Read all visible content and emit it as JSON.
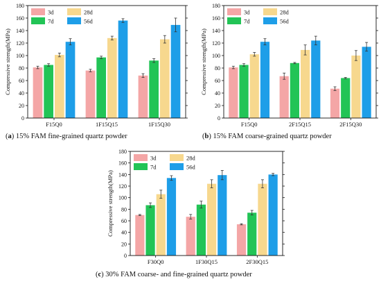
{
  "colors": {
    "3d": "#f4a6a6",
    "7d": "#22c456",
    "28d": "#f7d88e",
    "56d": "#1e9ee8",
    "axis": "#111111",
    "error": "#333333"
  },
  "chart_data": [
    {
      "type": "bar",
      "panel_tag": "a",
      "caption": "15% FAM fine-grained quartz powder",
      "ylabel": "Compressive strength(MPa)",
      "xlabel": "",
      "ylim": [
        0,
        180
      ],
      "yticks": [
        0,
        20,
        40,
        60,
        80,
        100,
        120,
        140,
        160,
        180
      ],
      "categories": [
        "F15Q0",
        "1F15Q15",
        "1F15Q30"
      ],
      "legend_position": "top-left",
      "series": [
        {
          "name": "3d",
          "values": [
            81,
            76,
            68
          ],
          "errors": [
            2,
            2,
            3
          ]
        },
        {
          "name": "7d",
          "values": [
            85,
            97,
            92
          ],
          "errors": [
            2,
            2,
            3
          ]
        },
        {
          "name": "28d",
          "values": [
            101,
            128,
            126
          ],
          "errors": [
            3,
            3,
            6
          ]
        },
        {
          "name": "56d",
          "values": [
            122,
            156,
            149
          ],
          "errors": [
            5,
            3,
            11
          ]
        }
      ]
    },
    {
      "type": "bar",
      "panel_tag": "b",
      "caption": "15% FAM coarse-grained quartz powder",
      "ylabel": "Compressive strength(MPa)",
      "xlabel": "",
      "ylim": [
        0,
        180
      ],
      "yticks": [
        0,
        20,
        40,
        60,
        80,
        100,
        120,
        140,
        160,
        180
      ],
      "categories": [
        "F15Q0",
        "2F15Q15",
        "2F15Q30"
      ],
      "legend_position": "top-left",
      "series": [
        {
          "name": "3d",
          "values": [
            81,
            67,
            47
          ],
          "errors": [
            2,
            5,
            3
          ]
        },
        {
          "name": "7d",
          "values": [
            85,
            88,
            64
          ],
          "errors": [
            2,
            1,
            1
          ]
        },
        {
          "name": "28d",
          "values": [
            102,
            109,
            100
          ],
          "errors": [
            3,
            8,
            8
          ]
        },
        {
          "name": "56d",
          "values": [
            122,
            124,
            114
          ],
          "errors": [
            5,
            7,
            7
          ]
        }
      ]
    },
    {
      "type": "bar",
      "panel_tag": "c",
      "caption": "30% FAM coarse- and fine-grained quartz powder",
      "ylabel": "Compressive strength(MPa)",
      "xlabel": "",
      "ylim": [
        0,
        180
      ],
      "yticks": [
        0,
        20,
        40,
        60,
        80,
        100,
        120,
        140,
        160,
        180
      ],
      "categories": [
        "F30Q0",
        "1F30Q15",
        "2F30Q15"
      ],
      "legend_position": "top-left",
      "series": [
        {
          "name": "3d",
          "values": [
            70,
            67,
            54
          ],
          "errors": [
            1,
            4,
            1
          ]
        },
        {
          "name": "7d",
          "values": [
            87,
            88,
            74
          ],
          "errors": [
            4,
            6,
            4
          ]
        },
        {
          "name": "28d",
          "values": [
            106,
            124,
            124
          ],
          "errors": [
            7,
            7,
            7
          ]
        },
        {
          "name": "56d",
          "values": [
            134,
            139,
            140
          ],
          "errors": [
            4,
            8,
            2
          ]
        }
      ]
    }
  ]
}
